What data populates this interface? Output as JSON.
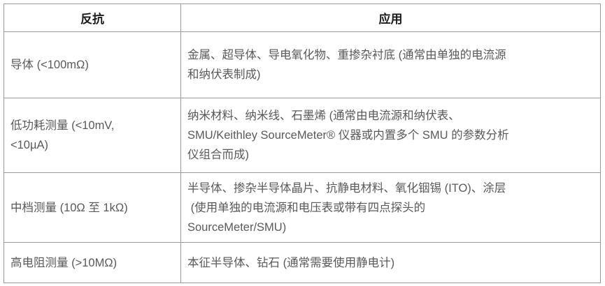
{
  "table": {
    "headers": {
      "resistance": "反抗",
      "application": "应用"
    },
    "rows": [
      {
        "resistance": "导体 (<100mΩ)",
        "application": "金属、超导体、导电氧化物、重掺杂衬底 (通常由单独的电流源\n和纳伏表制成)"
      },
      {
        "resistance": "低功耗测量 (<10mV,\n<10µA)",
        "application": "纳米材料、纳米线、石墨烯 (通常由电流源和纳伏表、\nSMU/Keithley SourceMeter® 仪器或内置多个 SMU 的参数分析\n仪组合而成)"
      },
      {
        "resistance": "中档测量 (10Ω 至 1kΩ)",
        "application": "半导体、掺杂半导体晶片、抗静电材料、氧化铟锡 (ITO)、涂层\n (使用单独的电流源和电压表或带有四点探头的\nSourceMeter/SMU)"
      },
      {
        "resistance": "高电阻测量 (>10MΩ)",
        "application": "本征半导体、钻石 (通常需要使用静电计)"
      }
    ],
    "colors": {
      "border": "#999999",
      "header_text": "#1a1a1a",
      "body_text": "#595959",
      "background": "#ffffff"
    }
  }
}
